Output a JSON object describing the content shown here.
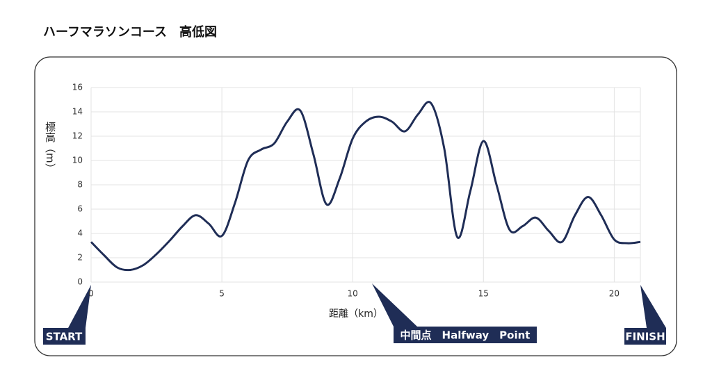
{
  "chart_data": {
    "type": "line",
    "title": "ハーフマラソンコース　高低図",
    "xlabel": "距離（km）",
    "ylabel": "標高（m）",
    "annotations": [
      "START",
      "中間点　Halfway　Point",
      "FINISH"
    ],
    "x": [
      0,
      0.5,
      1,
      1.5,
      2,
      2.5,
      3,
      3.5,
      4,
      4.5,
      5,
      5.5,
      6,
      6.5,
      7,
      7.5,
      8,
      8.5,
      9,
      9.5,
      10,
      10.5,
      11,
      11.5,
      12,
      12.5,
      13,
      13.5,
      14,
      14.5,
      15,
      15.5,
      16,
      16.5,
      17,
      17.5,
      18,
      18.5,
      19,
      19.5,
      20,
      20.5,
      21
    ],
    "series": [
      {
        "name": "標高",
        "color": "#1f2d56",
        "values": [
          3.3,
          2.2,
          1.2,
          1.0,
          1.4,
          2.3,
          3.4,
          4.6,
          5.5,
          4.8,
          3.8,
          6.5,
          10.0,
          10.9,
          11.4,
          13.2,
          14.1,
          10.5,
          6.4,
          8.5,
          11.8,
          13.2,
          13.6,
          13.2,
          12.4,
          13.8,
          14.7,
          11.0,
          3.7,
          7.5,
          11.6,
          8.0,
          4.3,
          4.6,
          5.3,
          4.2,
          3.3,
          5.5,
          7.0,
          5.5,
          3.5,
          3.2,
          3.3
        ]
      }
    ],
    "xlim": [
      0,
      21
    ],
    "xticks": [
      0,
      5,
      10,
      15,
      20
    ],
    "ylim": [
      0,
      16
    ],
    "yticks": [
      0,
      2,
      4,
      6,
      8,
      10,
      12,
      14,
      16
    ],
    "grid": true
  }
}
